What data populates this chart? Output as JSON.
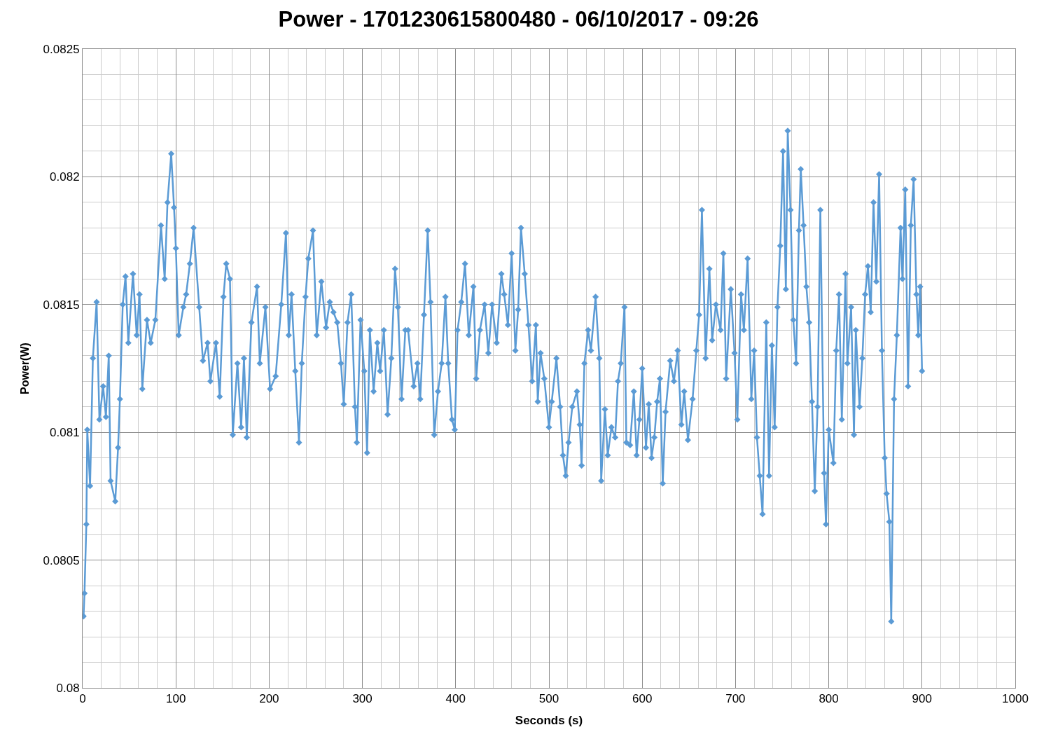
{
  "chart_data": {
    "type": "line",
    "title": "Power - 1701230615800480 - 06/10/2017 - 09:26",
    "xlabel": "Seconds (s)",
    "ylabel": "Power(W)",
    "x": [
      1,
      2,
      4,
      5,
      8,
      11,
      15,
      18,
      22,
      25,
      28,
      30,
      35,
      38,
      40,
      43,
      46,
      49,
      54,
      58,
      61,
      64,
      69,
      73,
      78,
      84,
      88,
      91,
      95,
      98,
      100,
      103,
      108,
      111,
      115,
      119,
      125,
      129,
      134,
      137,
      143,
      147,
      151,
      154,
      158,
      161,
      166,
      170,
      173,
      176,
      181,
      187,
      190,
      196,
      201,
      207,
      213,
      218,
      221,
      224,
      228,
      232,
      235,
      239,
      242,
      247,
      251,
      256,
      261,
      265,
      269,
      273,
      277,
      280,
      284,
      288,
      292,
      294,
      298,
      302,
      305,
      308,
      312,
      316,
      319,
      323,
      327,
      331,
      335,
      338,
      342,
      346,
      349,
      355,
      359,
      362,
      366,
      370,
      373,
      377,
      381,
      385,
      389,
      392,
      396,
      399,
      402,
      406,
      410,
      414,
      419,
      422,
      426,
      431,
      435,
      439,
      444,
      449,
      452,
      456,
      460,
      464,
      467,
      470,
      474,
      478,
      482,
      486,
      488,
      491,
      495,
      500,
      503,
      508,
      512,
      515,
      518,
      521,
      525,
      530,
      533,
      535,
      538,
      542,
      545,
      550,
      554,
      556,
      560,
      563,
      567,
      571,
      574,
      577,
      581,
      583,
      587,
      591,
      594,
      597,
      600,
      604,
      607,
      610,
      613,
      616,
      619,
      622,
      625,
      630,
      634,
      638,
      642,
      645,
      649,
      654,
      658,
      661,
      664,
      668,
      672,
      675,
      679,
      684,
      687,
      690,
      695,
      699,
      702,
      706,
      709,
      713,
      717,
      720,
      723,
      726,
      729,
      733,
      736,
      739,
      742,
      745,
      748,
      751,
      754,
      756,
      759,
      762,
      765,
      768,
      770,
      773,
      776,
      779,
      782,
      785,
      788,
      791,
      795,
      797,
      800,
      805,
      808,
      811,
      814,
      818,
      820,
      824,
      827,
      829,
      833,
      836,
      839,
      842,
      845,
      848,
      851,
      854,
      857,
      860,
      862,
      865,
      867,
      870,
      873,
      877,
      879,
      882,
      885,
      888,
      891,
      894,
      896,
      898,
      900
    ],
    "series": [
      {
        "color": "#5b9bd5",
        "values": [
          0.08028,
          0.08037,
          0.08064,
          0.08101,
          0.08079,
          0.08129,
          0.08151,
          0.08105,
          0.08118,
          0.08106,
          0.0813,
          0.08081,
          0.08073,
          0.08094,
          0.08113,
          0.0815,
          0.08161,
          0.08135,
          0.08162,
          0.08138,
          0.08154,
          0.08117,
          0.08144,
          0.08135,
          0.08144,
          0.08181,
          0.0816,
          0.0819,
          0.08209,
          0.08188,
          0.08172,
          0.08138,
          0.08149,
          0.08154,
          0.08166,
          0.0818,
          0.08149,
          0.08128,
          0.08135,
          0.0812,
          0.08135,
          0.08114,
          0.08153,
          0.08166,
          0.0816,
          0.08099,
          0.08127,
          0.08102,
          0.08129,
          0.08098,
          0.08143,
          0.08157,
          0.08127,
          0.08149,
          0.08117,
          0.08122,
          0.0815,
          0.08178,
          0.08138,
          0.08154,
          0.08124,
          0.08096,
          0.08127,
          0.08153,
          0.08168,
          0.08179,
          0.08138,
          0.08159,
          0.08141,
          0.08151,
          0.08147,
          0.08143,
          0.08127,
          0.08111,
          0.08143,
          0.08154,
          0.0811,
          0.08096,
          0.08144,
          0.08124,
          0.08092,
          0.0814,
          0.08116,
          0.08135,
          0.08124,
          0.0814,
          0.08107,
          0.08129,
          0.08164,
          0.08149,
          0.08113,
          0.0814,
          0.0814,
          0.08118,
          0.08127,
          0.08113,
          0.08146,
          0.08179,
          0.08151,
          0.08099,
          0.08116,
          0.08127,
          0.08153,
          0.08127,
          0.08105,
          0.08101,
          0.0814,
          0.08151,
          0.08166,
          0.08138,
          0.08157,
          0.08121,
          0.0814,
          0.0815,
          0.08131,
          0.0815,
          0.08135,
          0.08162,
          0.08154,
          0.08142,
          0.0817,
          0.08132,
          0.08148,
          0.0818,
          0.08162,
          0.08142,
          0.0812,
          0.08142,
          0.08112,
          0.08131,
          0.08121,
          0.08102,
          0.08112,
          0.08129,
          0.0811,
          0.08091,
          0.08083,
          0.08096,
          0.0811,
          0.08116,
          0.08103,
          0.08087,
          0.08127,
          0.0814,
          0.08132,
          0.08153,
          0.08129,
          0.08081,
          0.08109,
          0.08091,
          0.08102,
          0.08098,
          0.0812,
          0.08127,
          0.08149,
          0.08096,
          0.08095,
          0.08116,
          0.08091,
          0.08105,
          0.08125,
          0.08094,
          0.08111,
          0.0809,
          0.08098,
          0.08112,
          0.08121,
          0.0808,
          0.08108,
          0.08128,
          0.0812,
          0.08132,
          0.08103,
          0.08116,
          0.08097,
          0.08113,
          0.08132,
          0.08146,
          0.08187,
          0.08129,
          0.08164,
          0.08136,
          0.0815,
          0.0814,
          0.0817,
          0.08121,
          0.08156,
          0.08131,
          0.08105,
          0.08154,
          0.0814,
          0.08168,
          0.08113,
          0.08132,
          0.08098,
          0.08083,
          0.08068,
          0.08143,
          0.08083,
          0.08134,
          0.08102,
          0.08149,
          0.08173,
          0.0821,
          0.08156,
          0.08218,
          0.08187,
          0.08144,
          0.08127,
          0.08179,
          0.08203,
          0.08181,
          0.08157,
          0.08143,
          0.08112,
          0.08077,
          0.0811,
          0.08187,
          0.08084,
          0.08064,
          0.08101,
          0.08088,
          0.08132,
          0.08154,
          0.08105,
          0.08162,
          0.08127,
          0.08149,
          0.08099,
          0.0814,
          0.0811,
          0.08129,
          0.08154,
          0.08165,
          0.08147,
          0.0819,
          0.08159,
          0.08201,
          0.08132,
          0.0809,
          0.08076,
          0.08065,
          0.08026,
          0.08113,
          0.08138,
          0.0818,
          0.0816,
          0.08195,
          0.08118,
          0.08181,
          0.08199,
          0.08154,
          0.08138,
          0.08157,
          0.08124
        ]
      }
    ],
    "xlim": [
      0,
      1000
    ],
    "xticks": [
      0,
      100,
      200,
      300,
      400,
      500,
      600,
      700,
      800,
      900,
      1000
    ],
    "ylim": [
      0.08,
      0.0825
    ],
    "yticks": [
      0.08,
      0.0805,
      0.081,
      0.0815,
      0.082,
      0.0825
    ],
    "grid": true,
    "marker": "diamond",
    "line_style": "solid",
    "legend": false
  }
}
